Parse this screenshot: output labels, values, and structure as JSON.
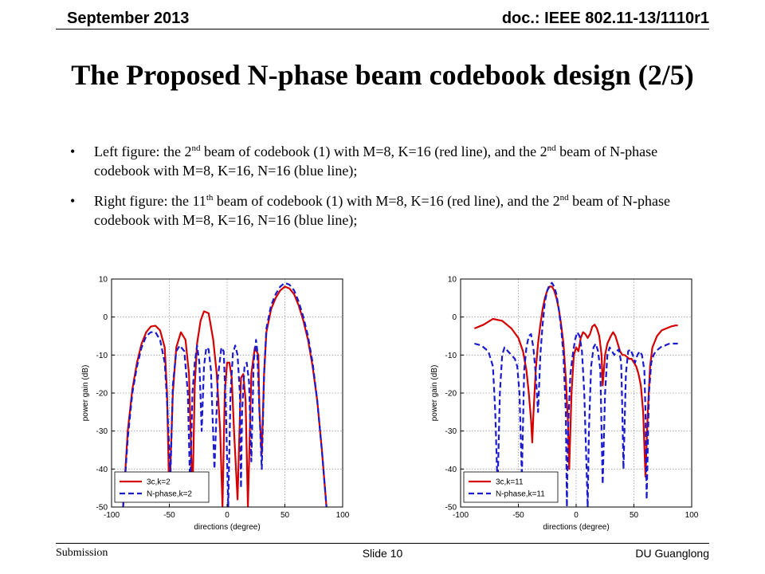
{
  "header": {
    "left": "September 2013",
    "right": "doc.: IEEE 802.11-13/1110r1"
  },
  "title": "The Proposed N-phase beam codebook design (2/5)",
  "bullets": [
    {
      "symbol": "•",
      "p1": "Left figure: the 2",
      "s1": "nd",
      "p2": " beam of codebook (1) with M=8, K=16 (red line),  and the 2",
      "s2": "nd",
      "p3": " beam of N-phase codebook with M=8, K=16, N=16 (blue line);"
    },
    {
      "symbol": "•",
      "p1": "Right figure: the 11",
      "s1": "th",
      "p2": " beam of codebook (1) with M=8, K=16 (red line),  and the 2",
      "s2": "nd",
      "p3": " beam of N-phase codebook with M=8, K=16, N=16 (blue line);"
    }
  ],
  "footer": {
    "left": "Submission",
    "center": "Slide 10",
    "right": "DU Guanglong"
  },
  "colors": {
    "red": "#d40000",
    "blue": "#1a1ad0",
    "grid": "#9a9a9a"
  },
  "chart_data": [
    {
      "type": "line",
      "xlabel": "directions (degree)",
      "ylabel": "power gain (dB)",
      "xlim": [
        -100,
        100
      ],
      "ylim": [
        -50,
        10
      ],
      "xticks": [
        -100,
        -50,
        0,
        50,
        100
      ],
      "yticks": [
        10,
        0,
        -10,
        -20,
        -30,
        -40,
        -50
      ],
      "grid": true,
      "legend": "bottom-left",
      "series": [
        {
          "name": "3c,k=2",
          "color": "#d40000",
          "dash": "solid",
          "x": [
            -90,
            -86,
            -82,
            -78,
            -74,
            -70,
            -66,
            -62,
            -58,
            -54,
            -52,
            -50,
            -47,
            -44,
            -40,
            -36,
            -33,
            -30,
            -28,
            -26,
            -23,
            -20,
            -16,
            -12,
            -9,
            -6,
            -4,
            -2,
            0,
            2,
            4,
            6,
            9,
            12,
            14,
            16,
            18,
            21,
            24,
            27,
            28,
            30,
            32,
            34,
            38,
            42,
            46,
            50,
            54,
            58,
            62,
            66,
            70,
            74,
            78,
            82,
            86
          ],
          "y": [
            -50,
            -30,
            -19,
            -12,
            -7,
            -4,
            -2.5,
            -2.3,
            -3.5,
            -8,
            -20,
            -48,
            -20,
            -8,
            -4,
            -6,
            -15,
            -48,
            -18,
            -7,
            -1,
            1.5,
            1,
            -6,
            -15,
            -30,
            -50,
            -20,
            -12,
            -12,
            -16,
            -30,
            -48,
            -16,
            -15,
            -22,
            -50,
            -15,
            -8,
            -10,
            -25,
            -36,
            -15,
            -4,
            2,
            5,
            7,
            8,
            7.5,
            6,
            3,
            -1,
            -6,
            -13,
            -22,
            -35,
            -50
          ]
        },
        {
          "name": "N-phase,k=2",
          "color": "#1a1ad0",
          "dash": "dashed",
          "x": [
            -90,
            -86,
            -82,
            -78,
            -74,
            -70,
            -66,
            -62,
            -58,
            -54,
            -52,
            -49,
            -47,
            -44,
            -41,
            -37,
            -34,
            -32,
            -30,
            -28,
            -26,
            -24,
            -22,
            -20,
            -18,
            -16,
            -14,
            -11,
            -8,
            -5,
            -3,
            -1,
            1,
            3,
            5,
            7,
            9,
            11,
            12,
            13,
            15,
            17,
            19,
            21,
            23,
            25,
            26,
            28,
            30,
            32,
            34,
            38,
            42,
            46,
            50,
            54,
            58,
            62,
            66,
            70,
            74,
            78,
            82,
            86
          ],
          "y": [
            -50,
            -32,
            -20,
            -13,
            -8,
            -5,
            -4,
            -4,
            -6,
            -12,
            -22,
            -42,
            -18,
            -9,
            -7.5,
            -9,
            -20,
            -45,
            -20,
            -12,
            -7.5,
            -12,
            -30,
            -13,
            -8,
            -8.5,
            -14,
            -40,
            -16,
            -8,
            -9,
            -25,
            -50,
            -20,
            -9.5,
            -7.5,
            -10,
            -20,
            -45,
            -25,
            -13,
            -12,
            -17,
            -38,
            -12,
            -6,
            -8.5,
            -25,
            -40,
            -15,
            -3,
            3,
            6,
            8,
            9,
            8.5,
            7,
            4,
            0,
            -5,
            -12,
            -22,
            -35,
            -50
          ]
        }
      ]
    },
    {
      "type": "line",
      "xlabel": "directions (degree)",
      "ylabel": "power gain (dB)",
      "xlim": [
        -100,
        100
      ],
      "ylim": [
        -50,
        10
      ],
      "xticks": [
        -100,
        -50,
        0,
        50,
        100
      ],
      "yticks": [
        10,
        0,
        -10,
        -20,
        -30,
        -40,
        -50
      ],
      "grid": true,
      "legend": "bottom-left",
      "series": [
        {
          "name": "3c,k=11",
          "color": "#d40000",
          "dash": "solid",
          "x": [
            -88,
            -80,
            -72,
            -64,
            -56,
            -50,
            -46,
            -43,
            -41,
            -39,
            -38,
            -37,
            -35,
            -33,
            -31,
            -29,
            -27,
            -25,
            -23,
            -21,
            -19,
            -17,
            -15,
            -13,
            -11,
            -9,
            -7,
            -6,
            -4,
            -2,
            0,
            2,
            4,
            6,
            8,
            10,
            12,
            14,
            16,
            18,
            20,
            22,
            23,
            25,
            27,
            30,
            32,
            34,
            36,
            38,
            40,
            42,
            44,
            46,
            48,
            50,
            52,
            54,
            56,
            58,
            60,
            62,
            64,
            66,
            70,
            74,
            78,
            82,
            86,
            88
          ],
          "y": [
            -3,
            -2,
            -0.5,
            -1,
            -3,
            -5.5,
            -9,
            -14,
            -20,
            -27,
            -33,
            -26,
            -14,
            -7,
            -2,
            2,
            5,
            7,
            8,
            8,
            7,
            5,
            2,
            -2,
            -7,
            -16,
            -28,
            -40,
            -20,
            -10,
            -8,
            -9,
            -5.5,
            -4,
            -4.5,
            -5.5,
            -4.5,
            -2.5,
            -2,
            -3,
            -5,
            -10,
            -18,
            -10,
            -7,
            -5,
            -4,
            -5,
            -7,
            -9,
            -10,
            -10,
            -10.5,
            -11,
            -11,
            -12,
            -13,
            -15,
            -18,
            -25,
            -42,
            -25,
            -13,
            -8,
            -5,
            -3.5,
            -3,
            -2.5,
            -2.2,
            -2.2
          ]
        },
        {
          "name": "N-phase,k=11",
          "color": "#1a1ad0",
          "dash": "dashed",
          "x": [
            -88,
            -82,
            -76,
            -72,
            -70,
            -68,
            -66,
            -64,
            -62,
            -59,
            -56,
            -53,
            -51,
            -49,
            -47,
            -45,
            -43,
            -41,
            -39,
            -37,
            -35,
            -33,
            -31,
            -29,
            -27,
            -25,
            -23,
            -21,
            -19,
            -17,
            -15,
            -13,
            -11,
            -9,
            -8,
            -7,
            -5,
            -3,
            -1,
            1,
            3,
            5,
            7,
            9,
            10,
            11,
            13,
            15,
            17,
            19,
            21,
            22,
            23,
            25,
            27,
            29,
            31,
            33,
            35,
            37,
            39,
            40,
            41,
            43,
            45,
            47,
            49,
            51,
            53,
            55,
            57,
            59,
            60,
            61,
            63,
            65,
            67,
            69,
            71,
            73,
            75,
            77,
            79,
            81,
            84,
            88
          ],
          "y": [
            -7,
            -7.5,
            -9,
            -13,
            -25,
            -45,
            -20,
            -10,
            -8,
            -9,
            -10,
            -11,
            -13,
            -20,
            -42,
            -14,
            -8,
            -5,
            -4.5,
            -8,
            -15,
            -25,
            -10,
            -2,
            4,
            7,
            8.5,
            9,
            8,
            6,
            2,
            -3,
            -10,
            -25,
            -50,
            -30,
            -15,
            -10,
            -6,
            -4,
            -5,
            -9,
            -20,
            -40,
            -50,
            -30,
            -13,
            -8,
            -7,
            -9,
            -14,
            -30,
            -44,
            -20,
            -10,
            -8,
            -9,
            -10,
            -9,
            -8.5,
            -12,
            -25,
            -40,
            -15,
            -9,
            -8.5,
            -10,
            -12,
            -10,
            -9,
            -10,
            -14,
            -25,
            -48,
            -20,
            -12,
            -10,
            -9,
            -8.5,
            -8,
            -7.5,
            -7.5,
            -7.2,
            -7,
            -7,
            -7
          ]
        }
      ]
    }
  ]
}
